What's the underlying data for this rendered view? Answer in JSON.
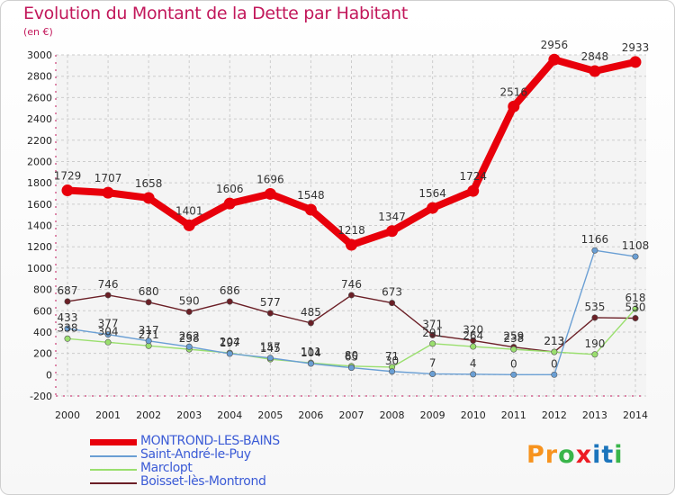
{
  "title": "Evolution du Montant de la Dette par Habitant",
  "subtitle": "(en €)",
  "logo": {
    "text": "Proxiti",
    "colors": [
      "#f7931e",
      "#f7931e",
      "#39b54a",
      "#ed1c24",
      "#1c75bc",
      "#1c75bc",
      "#39b54a"
    ]
  },
  "chart_data": {
    "type": "line",
    "x": [
      2000,
      2001,
      2002,
      2003,
      2004,
      2005,
      2006,
      2007,
      2008,
      2009,
      2010,
      2011,
      2012,
      2013,
      2014
    ],
    "ylim": [
      -200,
      3000
    ],
    "yticks": [
      -200,
      0,
      200,
      400,
      600,
      800,
      1000,
      1200,
      1400,
      1600,
      1800,
      2000,
      2200,
      2400,
      2600,
      2800,
      3000
    ],
    "grid": true,
    "legend_position": "bottom-left",
    "series": [
      {
        "name": "MONTROND-LES-BAINS",
        "color": "#e8000b",
        "values": [
          1729,
          1707,
          1658,
          1401,
          1606,
          1696,
          1548,
          1218,
          1347,
          1564,
          1724,
          2516,
          2956,
          2848,
          2933
        ],
        "labels": [
          "1729",
          "1707",
          "1658",
          "1401",
          "1606",
          "1696",
          "1548",
          "1218",
          "1347",
          "1564",
          "1724",
          "2516",
          "2956",
          "2848",
          "2933"
        ]
      },
      {
        "name": "Saint-André-le-Puy",
        "color": "#6a9fd4",
        "values": [
          433,
          377,
          317,
          262,
          197,
          157,
          104,
          65,
          30,
          7,
          4,
          0,
          0,
          1166,
          1108
        ],
        "labels": [
          "433",
          "377",
          "317",
          "262",
          "197",
          "157",
          "104",
          "65",
          "30",
          "7",
          "4",
          "0",
          "0",
          "1166",
          "1108"
        ]
      },
      {
        "name": "Marclopt",
        "color": "#9adf6e",
        "values": [
          338,
          304,
          271,
          238,
          204,
          145,
          111,
          80,
          71,
          291,
          264,
          238,
          213,
          190,
          618
        ],
        "labels": [
          "338",
          "304",
          "271",
          "238",
          "204",
          "145",
          "111",
          "80",
          "71",
          "291",
          "264",
          "238",
          "213",
          "190",
          "618"
        ]
      },
      {
        "name": "Boisset-lès-Montrond",
        "color": "#6b1f26",
        "values": [
          687,
          746,
          680,
          590,
          686,
          577,
          485,
          746,
          673,
          371,
          320,
          259,
          213,
          535,
          530
        ],
        "labels": [
          "687",
          "746",
          "680",
          "590",
          "686",
          "577",
          "485",
          "746",
          "673",
          "371",
          "320",
          "259",
          "213",
          "535",
          "530"
        ]
      }
    ]
  }
}
